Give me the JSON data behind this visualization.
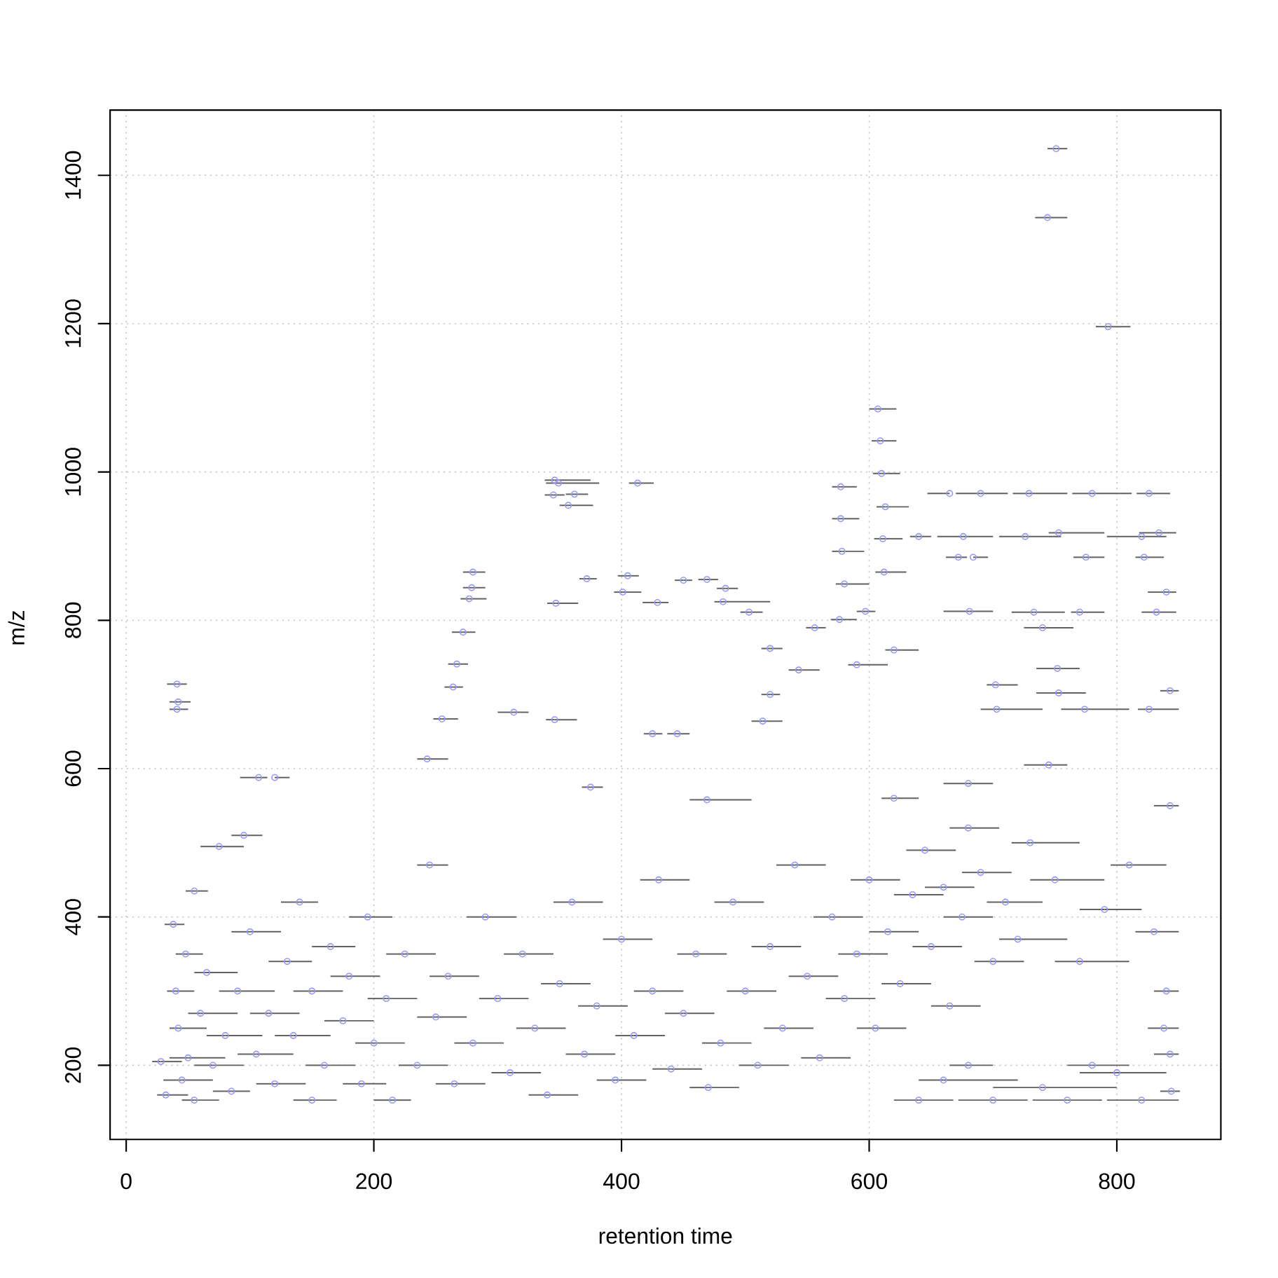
{
  "chart_data": {
    "type": "scatter",
    "xlabel": "retention time",
    "ylabel": "m/z",
    "xlim": [
      -13,
      884
    ],
    "ylim": [
      100,
      1488
    ],
    "xticks": [
      0,
      200,
      400,
      600,
      800
    ],
    "yticks": [
      200,
      400,
      600,
      800,
      1000,
      1200,
      1400
    ],
    "grid": true,
    "marker": "circle",
    "series": [
      {
        "color": "#9696ff",
        "x": [
          751,
          744,
          793,
          607,
          609,
          610,
          613,
          611,
          612,
          346,
          349,
          345,
          362,
          357,
          413,
          280,
          279,
          277,
          272,
          267,
          264,
          255,
          243,
          313,
          346,
          41,
          42,
          41,
          107,
          120,
          372,
          405,
          401,
          347,
          429,
          450,
          469,
          484,
          503,
          482,
          425,
          445,
          375,
          469,
          577,
          577,
          578,
          580,
          576,
          556,
          597,
          665,
          690,
          729,
          780,
          826,
          676,
          726,
          753,
          820,
          834,
          672,
          684,
          775,
          822,
          681,
          733,
          770,
          832,
          840,
          843,
          740,
          752,
          753,
          703,
          774,
          826,
          640,
          702,
          590,
          620,
          520,
          543,
          514,
          520,
          620,
          680,
          745,
          28,
          32,
          38,
          40,
          42,
          45,
          48,
          50,
          55,
          55,
          60,
          65,
          70,
          75,
          80,
          85,
          90,
          95,
          100,
          105,
          115,
          120,
          130,
          135,
          140,
          150,
          150,
          160,
          165,
          175,
          180,
          190,
          195,
          200,
          210,
          215,
          225,
          235,
          245,
          250,
          260,
          265,
          280,
          290,
          300,
          310,
          320,
          330,
          340,
          350,
          360,
          370,
          380,
          395,
          400,
          410,
          425,
          430,
          440,
          450,
          460,
          470,
          480,
          490,
          500,
          510,
          520,
          530,
          540,
          550,
          560,
          570,
          580,
          590,
          600,
          605,
          615,
          625,
          635,
          645,
          650,
          660,
          665,
          675,
          680,
          690,
          700,
          710,
          720,
          730,
          750,
          770,
          790,
          810,
          830,
          840,
          843,
          838,
          640,
          700,
          760,
          820,
          660,
          740,
          800,
          680,
          780,
          843,
          844
        ],
        "values": [
          1436,
          1343,
          1196,
          1085,
          1042,
          998,
          953,
          910,
          865,
          989,
          985,
          969,
          970,
          955,
          985,
          865,
          844,
          829,
          784,
          741,
          710,
          667,
          613,
          676,
          666,
          714,
          690,
          680,
          588,
          588,
          856,
          860,
          838,
          823,
          824,
          854,
          855,
          843,
          811,
          825,
          647,
          647,
          575,
          558,
          980,
          937,
          893,
          849,
          801,
          790,
          812,
          971,
          971,
          971,
          971,
          971,
          913,
          913,
          918,
          913,
          918,
          885,
          885,
          885,
          885,
          812,
          811,
          811,
          811,
          838,
          705,
          790,
          735,
          702,
          680,
          680,
          680,
          913,
          713,
          740,
          760,
          762,
          733,
          664,
          700,
          560,
          580,
          605,
          205,
          160,
          390,
          300,
          250,
          180,
          350,
          210,
          435,
          153,
          270,
          325,
          200,
          495,
          240,
          165,
          300,
          510,
          380,
          215,
          270,
          175,
          340,
          240,
          420,
          153,
          300,
          200,
          360,
          260,
          320,
          175,
          400,
          230,
          290,
          153,
          350,
          200,
          470,
          265,
          320,
          175,
          230,
          400,
          290,
          190,
          350,
          250,
          160,
          310,
          420,
          215,
          280,
          180,
          370,
          240,
          300,
          450,
          195,
          270,
          350,
          170,
          230,
          420,
          300,
          200,
          360,
          250,
          470,
          320,
          210,
          400,
          290,
          350,
          450,
          250,
          380,
          310,
          430,
          490,
          360,
          440,
          280,
          400,
          520,
          460,
          340,
          420,
          370,
          500,
          450,
          340,
          410,
          470,
          380,
          300,
          550,
          250,
          153,
          153,
          153,
          153,
          180,
          170,
          190,
          200,
          200,
          215,
          165
        ],
        "xerrors": [
          [
            744,
            760
          ],
          [
            734,
            760
          ],
          [
            783,
            811
          ],
          [
            600,
            622
          ],
          [
            602,
            622
          ],
          [
            603,
            625
          ],
          [
            606,
            632
          ],
          [
            604,
            627
          ],
          [
            605,
            630
          ],
          [
            338,
            375
          ],
          [
            339,
            382
          ],
          [
            338,
            354
          ],
          [
            355,
            373
          ],
          [
            350,
            377
          ],
          [
            406,
            426
          ],
          [
            272,
            290
          ],
          [
            272,
            290
          ],
          [
            270,
            291
          ],
          [
            263,
            282
          ],
          [
            260,
            276
          ],
          [
            257,
            272
          ],
          [
            248,
            268
          ],
          [
            235,
            260
          ],
          [
            300,
            325
          ],
          [
            339,
            364
          ],
          [
            33,
            49
          ],
          [
            35,
            52
          ],
          [
            35,
            50
          ],
          [
            92,
            114
          ],
          [
            120,
            132
          ],
          [
            366,
            380
          ],
          [
            397,
            414
          ],
          [
            394,
            416
          ],
          [
            340,
            365
          ],
          [
            417,
            438
          ],
          [
            443,
            457
          ],
          [
            462,
            478
          ],
          [
            477,
            494
          ],
          [
            496,
            514
          ],
          [
            475,
            520
          ],
          [
            418,
            433
          ],
          [
            437,
            455
          ],
          [
            368,
            385
          ],
          [
            455,
            505
          ],
          [
            570,
            590
          ],
          [
            570,
            592
          ],
          [
            570,
            596
          ],
          [
            573,
            600
          ],
          [
            569,
            590
          ],
          [
            549,
            565
          ],
          [
            590,
            605
          ],
          [
            647,
            665
          ],
          [
            670,
            712
          ],
          [
            716,
            760
          ],
          [
            764,
            812
          ],
          [
            816,
            843
          ],
          [
            655,
            700
          ],
          [
            705,
            755
          ],
          [
            745,
            790
          ],
          [
            792,
            840
          ],
          [
            818,
            848
          ],
          [
            662,
            679
          ],
          [
            684,
            696
          ],
          [
            765,
            790
          ],
          [
            815,
            838
          ],
          [
            660,
            700
          ],
          [
            715,
            758
          ],
          [
            763,
            790
          ],
          [
            820,
            848
          ],
          [
            825,
            848
          ],
          [
            835,
            850
          ],
          [
            725,
            765
          ],
          [
            735,
            770
          ],
          [
            735,
            775
          ],
          [
            690,
            740
          ],
          [
            755,
            810
          ],
          [
            817,
            850
          ],
          [
            633,
            650
          ],
          [
            695,
            720
          ],
          [
            583,
            615
          ],
          [
            613,
            640
          ],
          [
            513,
            530
          ],
          [
            535,
            560
          ],
          [
            505,
            530
          ],
          [
            513,
            528
          ],
          [
            610,
            640
          ],
          [
            660,
            700
          ],
          [
            725,
            760
          ],
          [
            21,
            45
          ],
          [
            25,
            50
          ],
          [
            31,
            47
          ],
          [
            33,
            55
          ],
          [
            35,
            65
          ],
          [
            30,
            70
          ],
          [
            40,
            62
          ],
          [
            35,
            80
          ],
          [
            48,
            66
          ],
          [
            45,
            75
          ],
          [
            50,
            90
          ],
          [
            55,
            90
          ],
          [
            55,
            95
          ],
          [
            60,
            95
          ],
          [
            65,
            110
          ],
          [
            70,
            100
          ],
          [
            75,
            120
          ],
          [
            85,
            110
          ],
          [
            85,
            125
          ],
          [
            90,
            135
          ],
          [
            100,
            140
          ],
          [
            105,
            145
          ],
          [
            115,
            150
          ],
          [
            120,
            165
          ],
          [
            125,
            155
          ],
          [
            135,
            170
          ],
          [
            135,
            175
          ],
          [
            145,
            185
          ],
          [
            150,
            185
          ],
          [
            160,
            200
          ],
          [
            165,
            205
          ],
          [
            175,
            210
          ],
          [
            180,
            215
          ],
          [
            185,
            225
          ],
          [
            195,
            235
          ],
          [
            200,
            230
          ],
          [
            210,
            250
          ],
          [
            220,
            260
          ],
          [
            235,
            260
          ],
          [
            235,
            275
          ],
          [
            245,
            285
          ],
          [
            250,
            290
          ],
          [
            265,
            305
          ],
          [
            275,
            315
          ],
          [
            285,
            325
          ],
          [
            295,
            335
          ],
          [
            305,
            345
          ],
          [
            315,
            355
          ],
          [
            325,
            365
          ],
          [
            335,
            375
          ],
          [
            345,
            385
          ],
          [
            355,
            395
          ],
          [
            365,
            405
          ],
          [
            380,
            420
          ],
          [
            385,
            425
          ],
          [
            395,
            435
          ],
          [
            410,
            450
          ],
          [
            415,
            455
          ],
          [
            425,
            465
          ],
          [
            435,
            475
          ],
          [
            445,
            485
          ],
          [
            455,
            495
          ],
          [
            465,
            505
          ],
          [
            475,
            515
          ],
          [
            485,
            525
          ],
          [
            495,
            535
          ],
          [
            505,
            545
          ],
          [
            515,
            555
          ],
          [
            525,
            565
          ],
          [
            535,
            575
          ],
          [
            545,
            585
          ],
          [
            555,
            595
          ],
          [
            565,
            605
          ],
          [
            575,
            615
          ],
          [
            585,
            625
          ],
          [
            590,
            630
          ],
          [
            600,
            640
          ],
          [
            610,
            650
          ],
          [
            620,
            660
          ],
          [
            630,
            670
          ],
          [
            635,
            675
          ],
          [
            645,
            685
          ],
          [
            650,
            690
          ],
          [
            660,
            700
          ],
          [
            665,
            705
          ],
          [
            675,
            715
          ],
          [
            685,
            725
          ],
          [
            695,
            740
          ],
          [
            705,
            760
          ],
          [
            715,
            770
          ],
          [
            730,
            790
          ],
          [
            750,
            810
          ],
          [
            770,
            820
          ],
          [
            795,
            840
          ],
          [
            815,
            850
          ],
          [
            830,
            850
          ],
          [
            830,
            850
          ],
          [
            825,
            850
          ],
          [
            620,
            668
          ],
          [
            672,
            728
          ],
          [
            732,
            788
          ],
          [
            792,
            850
          ],
          [
            640,
            720
          ],
          [
            700,
            800
          ],
          [
            770,
            840
          ],
          [
            665,
            700
          ],
          [
            760,
            810
          ],
          [
            830,
            850
          ],
          [
            835,
            851
          ]
        ]
      }
    ]
  }
}
